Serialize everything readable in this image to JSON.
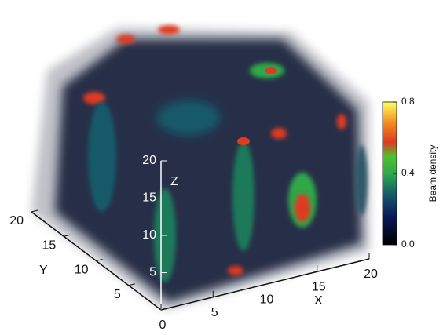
{
  "chart_data": {
    "type": "volume",
    "x_label": "X",
    "y_label": "Y",
    "z_label": "Z",
    "xlim": [
      0,
      20
    ],
    "ylim": [
      0,
      20
    ],
    "zlim": [
      0,
      20
    ],
    "xticks": [
      0,
      5,
      10,
      15,
      20
    ],
    "yticks": [
      5,
      10,
      15,
      20
    ],
    "zticks": [
      5,
      10,
      15,
      20
    ],
    "colorbar": {
      "label": "Beam density",
      "lim": [
        0,
        0.8
      ],
      "ticks": [
        {
          "value": 0,
          "label": "0.0"
        },
        0.4,
        0.8
      ]
    }
  }
}
